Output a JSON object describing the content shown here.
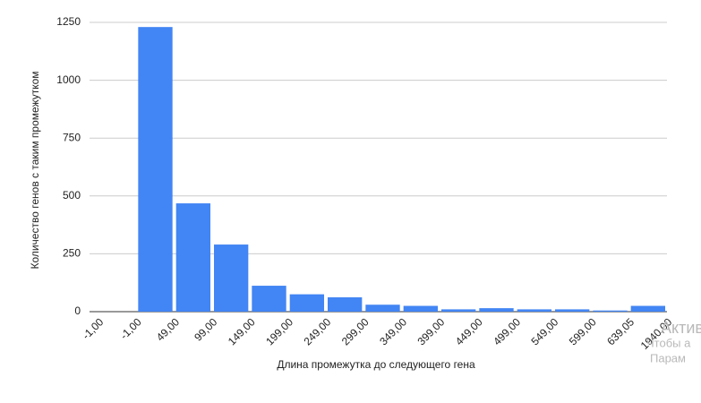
{
  "chart_data": {
    "type": "histogram",
    "xlabel": "Длина промежутка до следующего гена",
    "ylabel": "Количество генов с таким промежутком",
    "bins": [
      "-1,00",
      "-1,00",
      "49,00",
      "99,00",
      "149,00",
      "199,00",
      "249,00",
      "299,00",
      "349,00",
      "399,00",
      "449,00",
      "499,00",
      "549,00",
      "599,00",
      "639,05",
      "1940,00"
    ],
    "values": [
      0,
      1230,
      468,
      290,
      112,
      75,
      62,
      30,
      25,
      10,
      15,
      10,
      10,
      5,
      25
    ],
    "color": "#4285f4",
    "ylim": [
      0,
      1250
    ],
    "yticks": [
      0,
      250,
      500,
      750,
      1000,
      1250
    ],
    "grid": true
  },
  "watermark": [
    "Актив",
    "Чтобы а",
    "Парам"
  ]
}
